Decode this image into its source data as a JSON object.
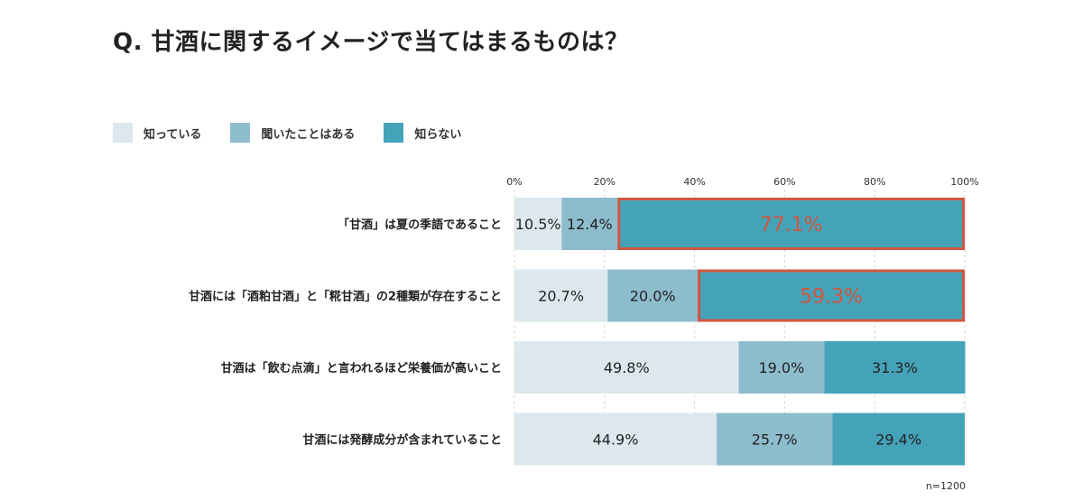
{
  "title": "Q. 甘酒に関するイメージで当てはまるものは？",
  "note": "n=1200",
  "colors": {
    "series": [
      "#dce8ee",
      "#8dbccc",
      "#45a3b9"
    ],
    "highlight": "#d0573e",
    "label_dark": "#222222"
  },
  "chart_data": {
    "type": "bar",
    "orientation": "horizontal",
    "stacked": true,
    "title": "Q. 甘酒に関するイメージで当てはまるものは？",
    "categories": [
      "「甘酒」は夏の季語であること",
      "甘酒には「酒粕甘酒」と「糀甘酒」の2種類が存在すること",
      "甘酒は「飲む点滴」と言われるほど栄養価が高いこと",
      "甘酒には発酵成分が含まれていること"
    ],
    "series": [
      {
        "name": "知っている",
        "values": [
          10.5,
          20.7,
          49.8,
          44.9
        ]
      },
      {
        "name": "聞いたことはある",
        "values": [
          12.4,
          20.0,
          19.0,
          25.7
        ]
      },
      {
        "name": "知らない",
        "values": [
          77.1,
          59.3,
          31.3,
          29.4
        ]
      }
    ],
    "value_labels": [
      [
        "10.5%",
        "12.4%",
        "77.1%"
      ],
      [
        "20.7%",
        "20.0%",
        "59.3%"
      ],
      [
        "49.8%",
        "19.0%",
        "31.3%"
      ],
      [
        "44.9%",
        "25.7%",
        "29.4%"
      ]
    ],
    "highlighted": [
      [
        0,
        2
      ],
      [
        1,
        2
      ]
    ],
    "x_ticks": [
      "0%",
      "20%",
      "40%",
      "60%",
      "80%",
      "100%"
    ],
    "x_tick_values": [
      0,
      20,
      40,
      60,
      80,
      100
    ],
    "xlim": [
      0,
      100
    ],
    "legend_position": "top-left",
    "grid": true
  }
}
